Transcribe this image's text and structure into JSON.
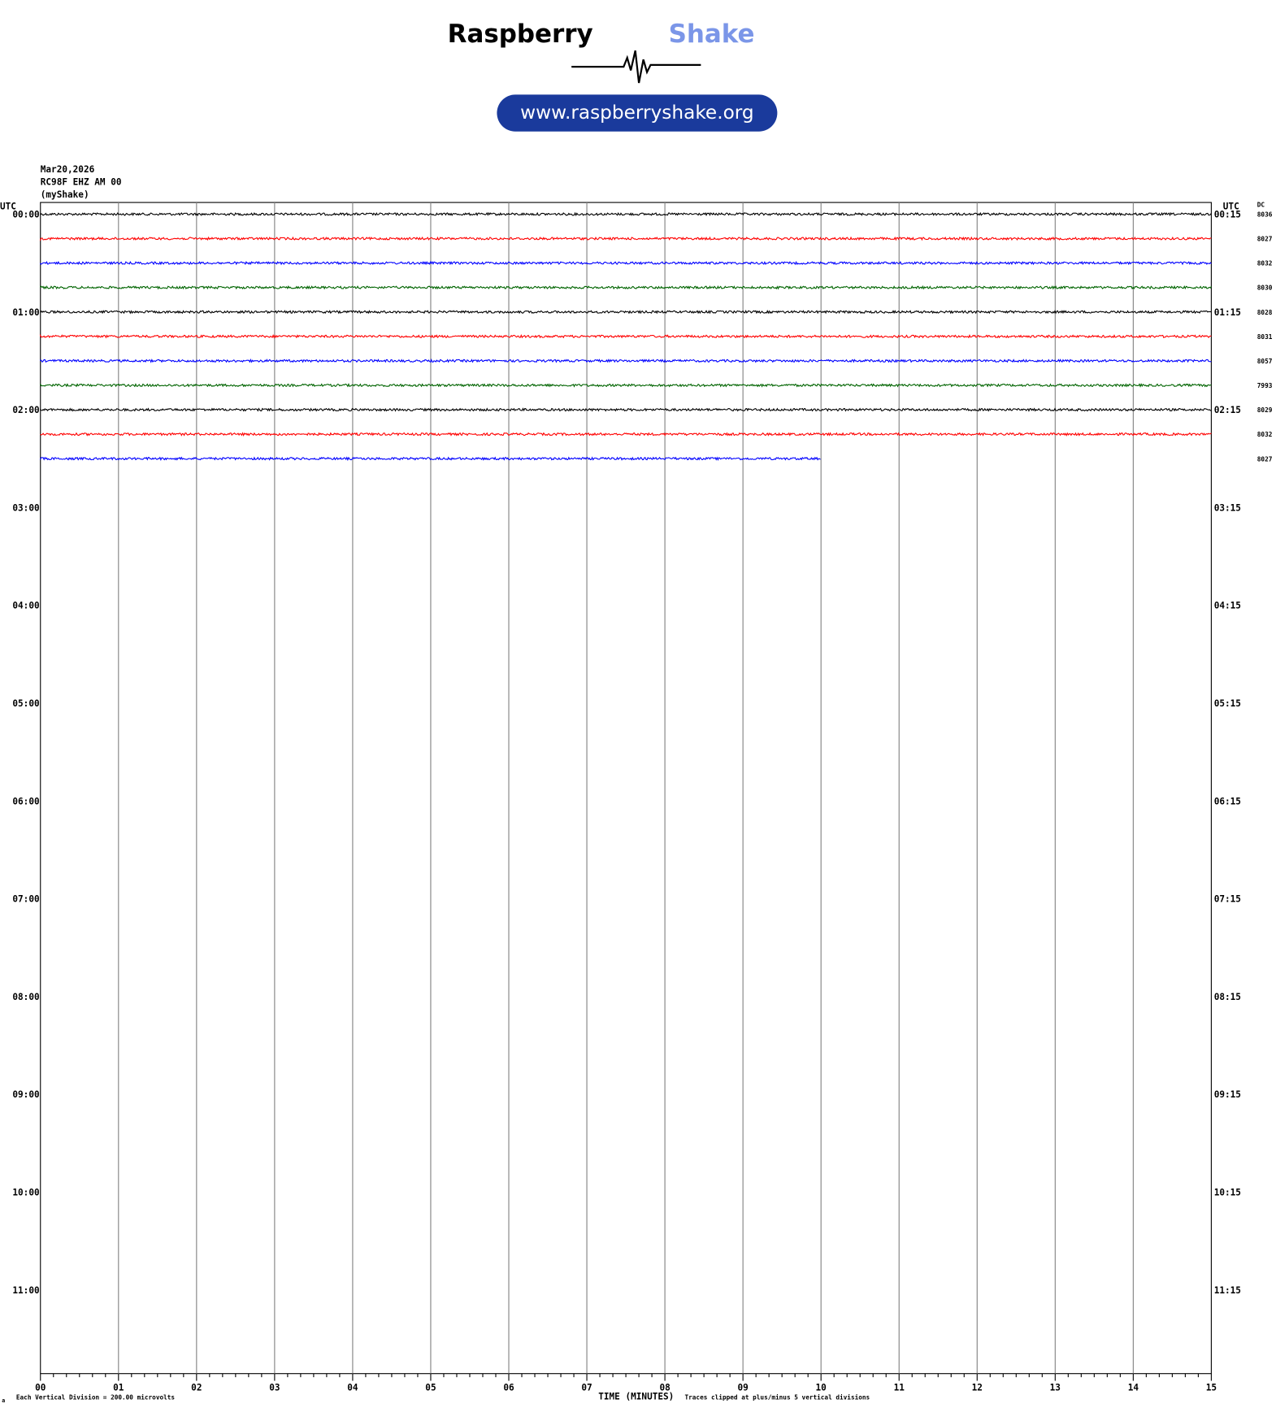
{
  "logo": {
    "brand": "Raspberry",
    "brand_accent": "Shake",
    "url": "www.raspberryshake.org"
  },
  "header": {
    "date": "Mar20,2026",
    "station": "RC98F EHZ AM 00",
    "source": "(myShake)"
  },
  "plot": {
    "left_axis_title": "UTC",
    "right_axis_title": "UTC",
    "dc_title": "DC",
    "left_labels": [
      "00:00",
      "01:00",
      "02:00",
      "03:00",
      "04:00",
      "05:00",
      "06:00",
      "07:00",
      "08:00",
      "09:00",
      "10:00",
      "11:00"
    ],
    "right_labels": [
      "00:15",
      "01:15",
      "02:15",
      "03:15",
      "04:15",
      "05:15",
      "06:15",
      "07:15",
      "08:15",
      "09:15",
      "10:15",
      "11:15"
    ],
    "xticks": [
      "00",
      "01",
      "02",
      "03",
      "04",
      "05",
      "06",
      "07",
      "08",
      "09",
      "10",
      "11",
      "12",
      "13",
      "14",
      "15"
    ],
    "x_title": "TIME (MINUTES)",
    "traces": [
      {
        "color": "#000000",
        "dc": "8036",
        "end_minute": 15
      },
      {
        "color": "#ff0000",
        "dc": "8027",
        "end_minute": 15
      },
      {
        "color": "#0000ff",
        "dc": "8032",
        "end_minute": 15
      },
      {
        "color": "#006400",
        "dc": "8030",
        "end_minute": 15
      },
      {
        "color": "#000000",
        "dc": "8028",
        "end_minute": 15
      },
      {
        "color": "#ff0000",
        "dc": "8031",
        "end_minute": 15
      },
      {
        "color": "#0000ff",
        "dc": "8057",
        "end_minute": 15
      },
      {
        "color": "#006400",
        "dc": "7993",
        "end_minute": 15
      },
      {
        "color": "#000000",
        "dc": "8029",
        "end_minute": 15
      },
      {
        "color": "#ff0000",
        "dc": "8032",
        "end_minute": 15
      },
      {
        "color": "#0000ff",
        "dc": "8027",
        "end_minute": 10
      }
    ],
    "footer_left": "Each Vertical Division =  200.00 microvolts",
    "footer_right": "Traces clipped at plus/minus 5 vertical divisions",
    "corner_mark": "a"
  }
}
